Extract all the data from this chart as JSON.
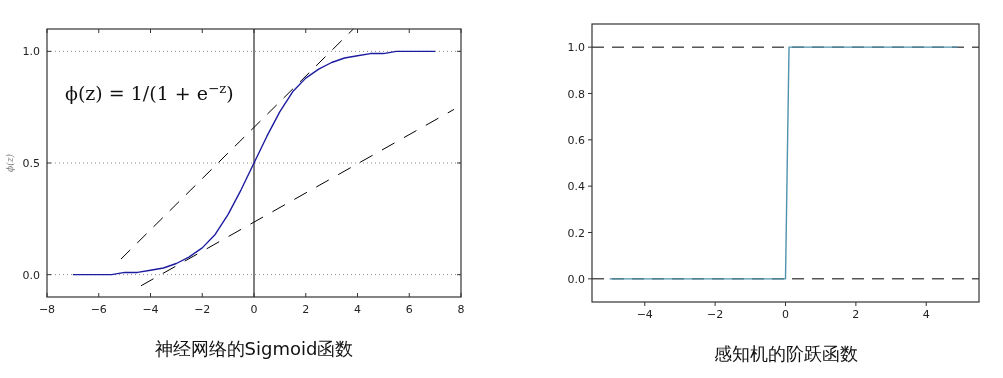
{
  "chart_data": [
    {
      "type": "line",
      "ylabel": "ϕ(z)",
      "annotations": [
        "ϕ(z) = 1/(1 + e$^{−z}$)",
        "神经网络的Sigmoid函数"
      ],
      "xlim": [
        -8,
        8
      ],
      "ylim": [
        -0.1,
        1.1
      ],
      "xticks": [
        -8,
        -6,
        -4,
        -2,
        0,
        2,
        4,
        6,
        8
      ],
      "yticks": [
        {
          "value": 0,
          "label": "0.0"
        },
        {
          "value": 0.5,
          "label": "0.5"
        },
        {
          "value": 1,
          "label": "1.0"
        }
      ],
      "grid": "y",
      "ref_lines": [
        {
          "axis": "x",
          "value": 0,
          "color": "#000000",
          "line_style": "solid"
        }
      ],
      "series": [
        {
          "color": "#1c1ca0",
          "x": [
            -7,
            -6.5,
            -6,
            -5.5,
            -5,
            -4.5,
            -4,
            -3.5,
            -3,
            -2.5,
            -2,
            -1.5,
            -1,
            -0.5,
            0,
            0.5,
            1,
            1.5,
            2,
            2.5,
            3,
            3.5,
            4,
            4.5,
            5,
            5.5,
            6,
            6.5,
            7
          ],
          "values": [
            0.0,
            0.0,
            0.0,
            0.0,
            0.01,
            0.01,
            0.02,
            0.03,
            0.05,
            0.08,
            0.12,
            0.18,
            0.27,
            0.38,
            0.5,
            0.62,
            0.73,
            0.82,
            0.88,
            0.92,
            0.95,
            0.97,
            0.98,
            0.99,
            0.99,
            1.0,
            1.0,
            1.0,
            1.0
          ],
          "line_style": "solid"
        },
        {
          "color": "#000000",
          "x": [
            -5.14,
            3.84
          ],
          "values": [
            0.07,
            1.1
          ],
          "line_style": "dashed"
        },
        {
          "color": "#000000",
          "x": [
            -4.37,
            7.73
          ],
          "values": [
            -0.05,
            0.74
          ],
          "line_style": "dashed"
        }
      ]
    },
    {
      "type": "line",
      "annotations": [
        "感知机的阶跃函数"
      ],
      "xlim": [
        -5.5,
        5.5
      ],
      "ylim": [
        -0.1,
        1.1
      ],
      "xticks": [
        -4,
        -2,
        0,
        2,
        4
      ],
      "yticks": [
        {
          "value": 0,
          "label": "0.0"
        },
        {
          "value": 0.2,
          "label": "0.2"
        },
        {
          "value": 0.4,
          "label": "0.4"
        },
        {
          "value": 0.6,
          "label": "0.6"
        },
        {
          "value": 0.8,
          "label": "0.8"
        },
        {
          "value": 1,
          "label": "1.0"
        }
      ],
      "ref_lines": [
        {
          "axis": "y",
          "value": 0,
          "color": "#000000",
          "line_style": "dashed"
        },
        {
          "axis": "y",
          "value": 1,
          "color": "#000000",
          "line_style": "dashed"
        }
      ],
      "series": [
        {
          "color": "#4f93ad",
          "x": [
            -5,
            0,
            0.1,
            4.9
          ],
          "values": [
            0,
            0,
            1,
            1
          ],
          "line_style": "solid"
        }
      ]
    }
  ]
}
